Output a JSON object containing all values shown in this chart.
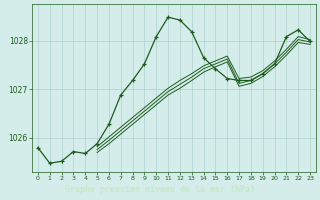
{
  "x": [
    0,
    1,
    2,
    3,
    4,
    5,
    6,
    7,
    8,
    9,
    10,
    11,
    12,
    13,
    14,
    15,
    16,
    17,
    18,
    19,
    20,
    21,
    22,
    23
  ],
  "main_line": [
    1025.8,
    1025.48,
    1025.52,
    1025.72,
    1025.68,
    1025.88,
    1026.28,
    1026.88,
    1027.18,
    1027.52,
    1028.08,
    1028.48,
    1028.42,
    1028.18,
    1027.65,
    1027.42,
    1027.22,
    1027.18,
    1027.18,
    1027.32,
    1027.52,
    1028.08,
    1028.22,
    1027.98
  ],
  "line2": [
    null,
    null,
    null,
    null,
    null,
    1025.82,
    1026.02,
    1026.22,
    1026.42,
    1026.62,
    1026.82,
    1027.02,
    1027.18,
    1027.32,
    1027.48,
    1027.58,
    1027.68,
    1027.22,
    1027.25,
    1027.38,
    1027.58,
    1027.82,
    1028.08,
    1028.02
  ],
  "line3": [
    null,
    null,
    null,
    null,
    null,
    1025.76,
    1025.95,
    1026.15,
    1026.35,
    1026.55,
    1026.75,
    1026.95,
    1027.1,
    1027.25,
    1027.42,
    1027.52,
    1027.62,
    1027.12,
    1027.18,
    1027.32,
    1027.52,
    1027.76,
    1028.02,
    1027.97
  ],
  "line4": [
    null,
    null,
    null,
    null,
    null,
    1025.7,
    1025.88,
    1026.08,
    1026.28,
    1026.48,
    1026.68,
    1026.88,
    1027.02,
    1027.18,
    1027.35,
    1027.46,
    1027.56,
    1027.06,
    1027.12,
    1027.26,
    1027.46,
    1027.7,
    1027.96,
    1027.92
  ],
  "bg_color": "#d4ecea",
  "plot_bg_color": "#d4ecea",
  "line_color": "#1e5c1e",
  "grid_color": "#b0d0cc",
  "xlabel": "Graphe pression niveau de la mer (hPa)",
  "xlabel_bg": "#2d6b2d",
  "xlabel_fg": "#c8e8c8",
  "tick_color": "#1e5c1e",
  "ylim_min": 1025.3,
  "ylim_max": 1028.75,
  "xlim_min": -0.5,
  "xlim_max": 23.5,
  "yticks": [
    1026,
    1027,
    1028
  ],
  "xticks": [
    0,
    1,
    2,
    3,
    4,
    5,
    6,
    7,
    8,
    9,
    10,
    11,
    12,
    13,
    14,
    15,
    16,
    17,
    18,
    19,
    20,
    21,
    22,
    23
  ]
}
